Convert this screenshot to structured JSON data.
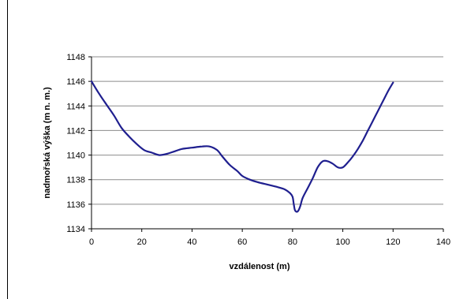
{
  "chart_data": {
    "type": "line",
    "title": "",
    "xlabel": "vzdálenost (m)",
    "ylabel": "nadmořská výška (m n. m.)",
    "xlim": [
      0,
      140
    ],
    "ylim": [
      1134,
      1148
    ],
    "x_ticks": [
      0,
      20,
      40,
      60,
      80,
      100,
      120,
      140
    ],
    "y_ticks": [
      1134,
      1136,
      1138,
      1140,
      1142,
      1144,
      1146,
      1148
    ],
    "grid": "horizontal major gridlines",
    "legend": "none",
    "series": [
      {
        "color": "#1f1f8f",
        "x": [
          0,
          3,
          6,
          9,
          12,
          15,
          18,
          21,
          24,
          27,
          30,
          33,
          36,
          40,
          44,
          47,
          50,
          52,
          55,
          58,
          60,
          63,
          66,
          70,
          74,
          77,
          79,
          80,
          80.5,
          81,
          82,
          83,
          84,
          86,
          88,
          90,
          92,
          94,
          96,
          98,
          100,
          102,
          104,
          106,
          108,
          110,
          112,
          114,
          116,
          118,
          120
        ],
        "y": [
          1146.0,
          1145.0,
          1144.1,
          1143.2,
          1142.2,
          1141.5,
          1140.9,
          1140.4,
          1140.2,
          1140.0,
          1140.1,
          1140.3,
          1140.5,
          1140.6,
          1140.7,
          1140.7,
          1140.4,
          1139.9,
          1139.2,
          1138.7,
          1138.3,
          1138.0,
          1137.8,
          1137.6,
          1137.4,
          1137.2,
          1136.9,
          1136.6,
          1136.0,
          1135.5,
          1135.4,
          1135.8,
          1136.5,
          1137.3,
          1138.1,
          1139.0,
          1139.5,
          1139.5,
          1139.3,
          1139.0,
          1139.0,
          1139.4,
          1139.9,
          1140.5,
          1141.2,
          1142.0,
          1142.8,
          1143.6,
          1144.4,
          1145.2,
          1145.9
        ]
      }
    ]
  }
}
